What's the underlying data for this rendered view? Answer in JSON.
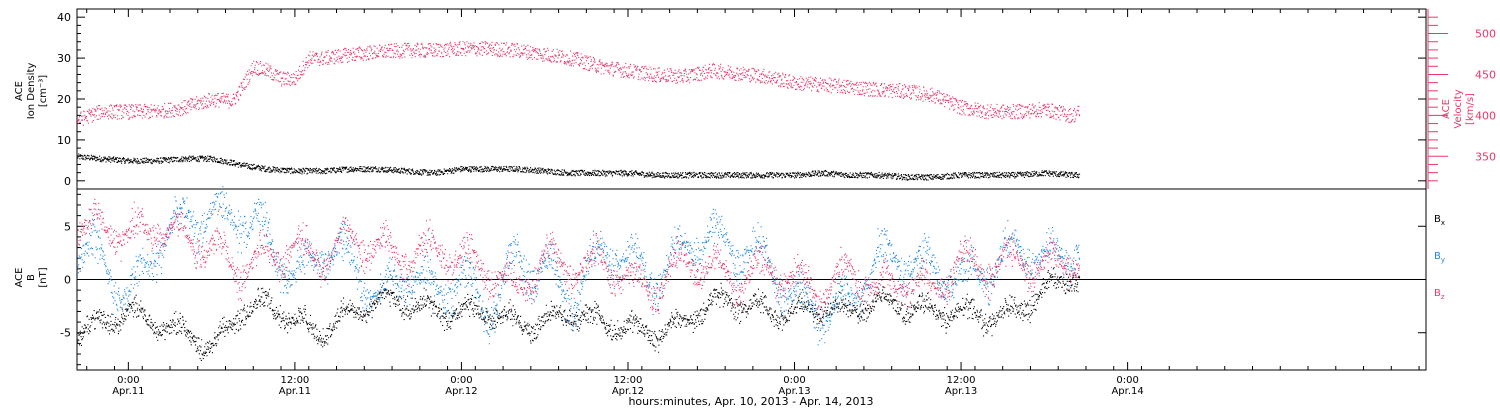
{
  "chart_data": {
    "type": "scatter",
    "xlabel": "hours:minutes, Apr. 10, 2013 - Apr. 14, 2013",
    "x_axis": {
      "unit": "hours since 2013-04-10 00:00",
      "range": [
        20.3,
        117.5
      ],
      "ticks": [
        {
          "x": 24,
          "time": "0:00",
          "date": "Apr.11"
        },
        {
          "x": 36,
          "time": "12:00",
          "date": "Apr.11"
        },
        {
          "x": 48,
          "time": "0:00",
          "date": "Apr.12"
        },
        {
          "x": 60,
          "time": "12:00",
          "date": "Apr.12"
        },
        {
          "x": 72,
          "time": "0:00",
          "date": "Apr.13"
        },
        {
          "x": 84,
          "time": "12:00",
          "date": "Apr.13"
        },
        {
          "x": 96,
          "time": "0:00",
          "date": "Apr.14"
        }
      ]
    },
    "panels": [
      {
        "name": "top",
        "left_axis": {
          "label_lines": [
            "ACE",
            "Ion Density",
            "[cm⁻³]"
          ],
          "ylim": [
            -2,
            42
          ],
          "ticks": [
            0,
            10,
            20,
            30,
            40
          ]
        },
        "right_axis": {
          "label_lines": [
            "ACE",
            "Velocity",
            "[km/s]"
          ],
          "ylim": [
            310,
            530
          ],
          "ticks": [
            350,
            400,
            450,
            500
          ],
          "color": "#e8386a"
        },
        "series": [
          {
            "key": "density",
            "color": "#000000",
            "axis": "left",
            "points": [
              [
                20.3,
                6.0
              ],
              [
                22,
                5.5
              ],
              [
                24,
                5.0
              ],
              [
                26,
                5.0
              ],
              [
                28,
                5.5
              ],
              [
                30,
                5.5
              ],
              [
                31.5,
                4.5
              ],
              [
                32,
                4.0
              ],
              [
                34,
                3.0
              ],
              [
                36,
                2.5
              ],
              [
                38,
                2.5
              ],
              [
                40,
                3.0
              ],
              [
                42,
                3.0
              ],
              [
                44,
                2.5
              ],
              [
                46,
                2.0
              ],
              [
                48,
                3.0
              ],
              [
                50,
                3.0
              ],
              [
                52,
                3.0
              ],
              [
                54,
                2.5
              ],
              [
                56,
                2.0
              ],
              [
                58,
                2.0
              ],
              [
                60,
                2.0
              ],
              [
                62,
                1.5
              ],
              [
                64,
                1.5
              ],
              [
                66,
                1.5
              ],
              [
                68,
                1.5
              ],
              [
                70,
                1.5
              ],
              [
                72,
                1.5
              ],
              [
                74,
                2.0
              ],
              [
                76,
                1.5
              ],
              [
                78,
                1.5
              ],
              [
                80,
                1.0
              ],
              [
                82,
                1.0
              ],
              [
                84,
                1.5
              ],
              [
                86,
                1.5
              ],
              [
                88,
                1.5
              ],
              [
                90,
                2.0
              ],
              [
                92,
                1.5
              ],
              [
                92.5,
                1.5
              ]
            ]
          },
          {
            "key": "velocity",
            "color": "#e8386a",
            "axis": "right",
            "points": [
              [
                20.3,
                395
              ],
              [
                22,
                405
              ],
              [
                24,
                405
              ],
              [
                26,
                405
              ],
              [
                28,
                410
              ],
              [
                29,
                415
              ],
              [
                30,
                420
              ],
              [
                31.5,
                418
              ],
              [
                32,
                430
              ],
              [
                33,
                460
              ],
              [
                34,
                455
              ],
              [
                35,
                445
              ],
              [
                36,
                445
              ],
              [
                37,
                470
              ],
              [
                38,
                470
              ],
              [
                40,
                475
              ],
              [
                42,
                478
              ],
              [
                44,
                480
              ],
              [
                46,
                480
              ],
              [
                48,
                482
              ],
              [
                50,
                482
              ],
              [
                52,
                480
              ],
              [
                54,
                475
              ],
              [
                56,
                470
              ],
              [
                58,
                460
              ],
              [
                60,
                455
              ],
              [
                62,
                450
              ],
              [
                64,
                448
              ],
              [
                66,
                455
              ],
              [
                68,
                452
              ],
              [
                70,
                448
              ],
              [
                72,
                440
              ],
              [
                74,
                438
              ],
              [
                76,
                435
              ],
              [
                78,
                432
              ],
              [
                80,
                430
              ],
              [
                82,
                425
              ],
              [
                84,
                410
              ],
              [
                86,
                405
              ],
              [
                88,
                405
              ],
              [
                90,
                408
              ],
              [
                92,
                400
              ],
              [
                92.5,
                405
              ]
            ]
          }
        ]
      },
      {
        "name": "bottom",
        "left_axis": {
          "label_lines": [
            "ACE",
            "B",
            "[nT]"
          ],
          "ylim": [
            -8.5,
            8.5
          ],
          "ticks": [
            -5,
            0,
            5
          ]
        },
        "zero_line": 0,
        "legend": [
          {
            "label": "B",
            "sub": "x",
            "color": "#000000"
          },
          {
            "label": "B",
            "sub": "y",
            "color": "#1e88e5"
          },
          {
            "label": "B",
            "sub": "z",
            "color": "#e8386a"
          }
        ],
        "series": [
          {
            "key": "Bx",
            "color": "#000000",
            "points": [
              [
                20.3,
                -5
              ],
              [
                22,
                -4
              ],
              [
                24,
                -3
              ],
              [
                26,
                -4
              ],
              [
                28,
                -5
              ],
              [
                30,
                -6.5
              ],
              [
                32,
                -3
              ],
              [
                34,
                -2
              ],
              [
                36,
                -4
              ],
              [
                38,
                -5
              ],
              [
                40,
                -3
              ],
              [
                42,
                -2
              ],
              [
                44,
                -2
              ],
              [
                46,
                -3
              ],
              [
                48,
                -3
              ],
              [
                50,
                -3
              ],
              [
                52,
                -4
              ],
              [
                54,
                -4
              ],
              [
                56,
                -3
              ],
              [
                58,
                -4
              ],
              [
                60,
                -4.5
              ],
              [
                62,
                -5
              ],
              [
                64,
                -4
              ],
              [
                66,
                -2
              ],
              [
                68,
                -2
              ],
              [
                70,
                -3
              ],
              [
                72,
                -3
              ],
              [
                74,
                -2.5
              ],
              [
                76,
                -3
              ],
              [
                78,
                -2
              ],
              [
                80,
                -2.5
              ],
              [
                82,
                -3
              ],
              [
                84,
                -3
              ],
              [
                86,
                -3.5
              ],
              [
                88,
                -3
              ],
              [
                90,
                -1
              ],
              [
                92,
                0.5
              ],
              [
                92.5,
                0
              ]
            ]
          },
          {
            "key": "By",
            "color": "#1e88e5",
            "points": [
              [
                20.3,
                3
              ],
              [
                22,
                2
              ],
              [
                24,
                -2
              ],
              [
                26,
                3
              ],
              [
                28,
                6
              ],
              [
                30,
                6
              ],
              [
                32,
                6
              ],
              [
                34,
                4
              ],
              [
                36,
                0
              ],
              [
                38,
                3
              ],
              [
                40,
                2
              ],
              [
                42,
                -2
              ],
              [
                44,
                1
              ],
              [
                46,
                -1
              ],
              [
                48,
                0
              ],
              [
                50,
                -3
              ],
              [
                52,
                2
              ],
              [
                54,
                1
              ],
              [
                56,
                -2
              ],
              [
                58,
                3
              ],
              [
                60,
                2
              ],
              [
                62,
                0
              ],
              [
                64,
                3
              ],
              [
                66,
                4
              ],
              [
                68,
                3
              ],
              [
                70,
                2
              ],
              [
                72,
                -2
              ],
              [
                74,
                -3
              ],
              [
                76,
                -2
              ],
              [
                78,
                2
              ],
              [
                80,
                2
              ],
              [
                82,
                1
              ],
              [
                84,
                0
              ],
              [
                86,
                1
              ],
              [
                88,
                3
              ],
              [
                90,
                2
              ],
              [
                92,
                3
              ],
              [
                92.5,
                3.5
              ]
            ]
          },
          {
            "key": "Bz",
            "color": "#e8386a",
            "points": [
              [
                20.3,
                5
              ],
              [
                22,
                5
              ],
              [
                24,
                4
              ],
              [
                26,
                5
              ],
              [
                28,
                4
              ],
              [
                30,
                3
              ],
              [
                32,
                1
              ],
              [
                34,
                2
              ],
              [
                36,
                3
              ],
              [
                38,
                2
              ],
              [
                40,
                4
              ],
              [
                42,
                3
              ],
              [
                44,
                2
              ],
              [
                46,
                3
              ],
              [
                48,
                2
              ],
              [
                50,
                1
              ],
              [
                52,
                -1
              ],
              [
                54,
                2
              ],
              [
                56,
                1
              ],
              [
                58,
                2
              ],
              [
                60,
                0
              ],
              [
                62,
                -1
              ],
              [
                64,
                2
              ],
              [
                66,
                1
              ],
              [
                68,
                0
              ],
              [
                70,
                1
              ],
              [
                72,
                0
              ],
              [
                74,
                -1
              ],
              [
                76,
                1
              ],
              [
                78,
                -1
              ],
              [
                80,
                0
              ],
              [
                82,
                -1
              ],
              [
                84,
                2
              ],
              [
                86,
                1
              ],
              [
                88,
                2
              ],
              [
                90,
                1
              ],
              [
                92,
                2
              ],
              [
                92.5,
                1.5
              ]
            ]
          }
        ]
      }
    ]
  }
}
